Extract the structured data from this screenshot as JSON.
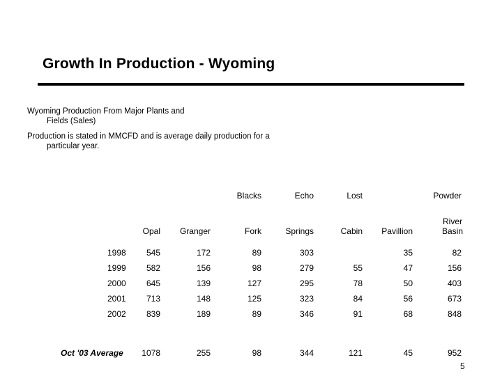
{
  "slide": {
    "title": "Growth In Production - Wyoming",
    "note1": [
      "Wyoming Production From Major Plants and",
      "Fields (Sales)"
    ],
    "note2": [
      "Production is stated in MMCFD and is average daily production for a",
      "particular year."
    ],
    "page_number": "5"
  },
  "table": {
    "header_top": [
      "",
      "",
      "",
      "Blacks",
      "Echo",
      "Lost",
      "",
      "Powder"
    ],
    "header_bottom": [
      "",
      "Opal",
      "Granger",
      "Fork",
      "Springs",
      "Cabin",
      "Pavillion",
      "River"
    ],
    "header_extra": [
      "Basin"
    ],
    "rows": [
      [
        "1998",
        "545",
        "172",
        "89",
        "303",
        "",
        "35",
        "82"
      ],
      [
        "1999",
        "582",
        "156",
        "98",
        "279",
        "55",
        "47",
        "156"
      ],
      [
        "2000",
        "645",
        "139",
        "127",
        "295",
        "78",
        "50",
        "403"
      ],
      [
        "2001",
        "713",
        "148",
        "125",
        "323",
        "84",
        "56",
        "673"
      ],
      [
        "2002",
        "839",
        "189",
        "89",
        "346",
        "91",
        "68",
        "848"
      ],
      [
        "Oct '03  Average",
        "1078",
        "255",
        "98",
        "344",
        "121",
        "45",
        "952"
      ]
    ]
  }
}
